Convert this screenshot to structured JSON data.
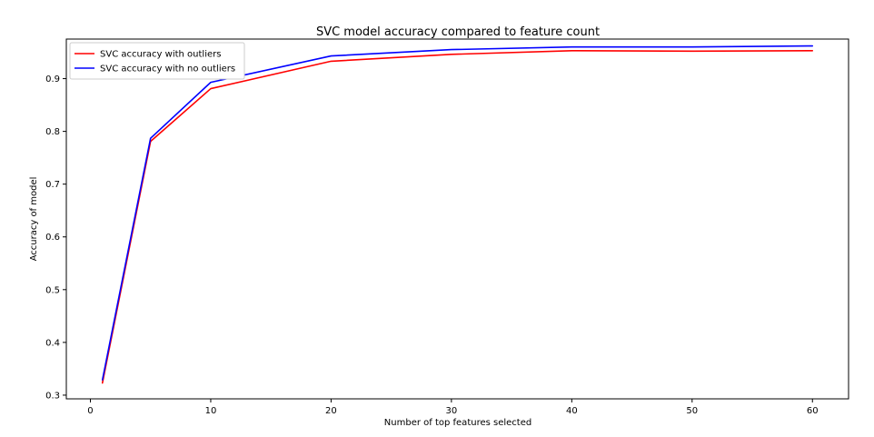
{
  "chart_data": {
    "type": "line",
    "title": "SVC model accuracy compared to feature count",
    "xlabel": "Number of top features selected",
    "ylabel": "Accuracy of model",
    "xlim": [
      -2,
      63
    ],
    "ylim": [
      0.293,
      0.975
    ],
    "xticks": [
      0,
      10,
      20,
      30,
      40,
      50,
      60
    ],
    "yticks": [
      0.3,
      0.4,
      0.5,
      0.6,
      0.7,
      0.8,
      0.9
    ],
    "grid": false,
    "legend_position": "top-left",
    "x": [
      1,
      5,
      10,
      20,
      30,
      40,
      50,
      60
    ],
    "series": [
      {
        "name": "SVC accuracy with outliers",
        "color": "#ff0000",
        "values": [
          0.323,
          0.781,
          0.881,
          0.933,
          0.946,
          0.953,
          0.952,
          0.953
        ]
      },
      {
        "name": "SVC accuracy with no outliers",
        "color": "#0000ff",
        "values": [
          0.329,
          0.787,
          0.893,
          0.943,
          0.955,
          0.96,
          0.96,
          0.962
        ]
      }
    ]
  }
}
